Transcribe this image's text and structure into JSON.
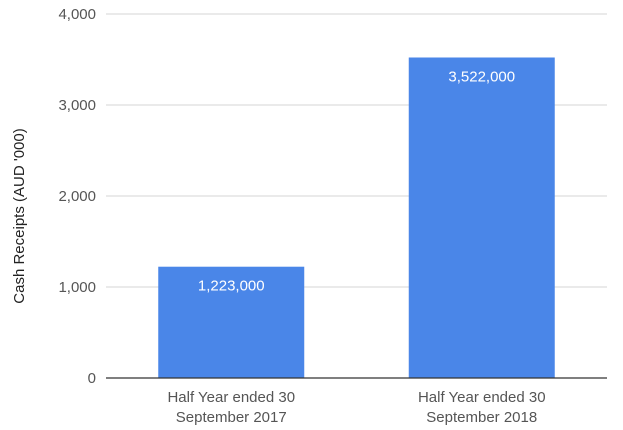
{
  "chart_data": {
    "type": "bar",
    "categories": [
      [
        "Half Year ended 30",
        "September 2017"
      ],
      [
        "Half Year ended 30",
        "September 2018"
      ]
    ],
    "series": [
      {
        "values": [
          1223,
          3522
        ],
        "data_labels": [
          "1,223,000",
          "3,522,000"
        ]
      }
    ],
    "ylabel": "Cash Receipts (AUD '000)",
    "xlabel": "",
    "title": "",
    "ylim": [
      0,
      4000
    ],
    "yticks": [
      0,
      1000,
      2000,
      3000,
      4000
    ],
    "ytick_labels": [
      "0",
      "1,000",
      "2,000",
      "3,000",
      "4,000"
    ],
    "grid": true,
    "legend": "none",
    "bar_color": "#4a86e8"
  }
}
